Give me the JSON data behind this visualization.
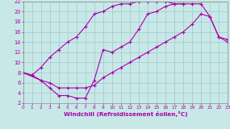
{
  "xlabel": "Windchill (Refroidissement éolien,°C)",
  "xlim": [
    0,
    23
  ],
  "ylim": [
    2,
    22
  ],
  "yticks": [
    2,
    4,
    6,
    8,
    10,
    12,
    14,
    16,
    18,
    20,
    22
  ],
  "xticks": [
    0,
    1,
    2,
    3,
    4,
    5,
    6,
    7,
    8,
    9,
    10,
    11,
    12,
    13,
    14,
    15,
    16,
    17,
    18,
    19,
    20,
    21,
    22,
    23
  ],
  "line_color": "#aa00aa",
  "bg_color": "#c8e8e8",
  "grid_color": "#a0c8c8",
  "curve1_x": [
    0,
    1,
    2,
    3,
    4,
    5,
    6,
    7,
    8,
    9,
    10,
    11,
    12,
    13,
    14,
    15,
    16,
    17,
    18
  ],
  "curve1_y": [
    8,
    7.5,
    9,
    11,
    12.5,
    14,
    15,
    17,
    19.5,
    20,
    21,
    21.5,
    21.5,
    22,
    22,
    22,
    22,
    21.5,
    21.5
  ],
  "curve2_x": [
    0,
    2,
    3,
    4,
    5,
    6,
    7,
    8,
    9,
    10,
    11,
    12,
    13,
    14,
    15,
    16,
    17,
    18,
    19,
    20,
    21,
    22,
    23
  ],
  "curve2_y": [
    8,
    6.5,
    6,
    5,
    5,
    5,
    5,
    5.5,
    7,
    8,
    9,
    10,
    11,
    12,
    13,
    14,
    15,
    16,
    17.5,
    19.5,
    19,
    15,
    14
  ],
  "curve3_x": [
    0,
    1,
    2,
    3,
    4,
    5,
    6,
    7,
    8,
    9,
    10,
    11,
    12,
    13,
    14,
    15,
    16,
    17,
    18,
    19,
    20,
    21,
    22,
    23
  ],
  "curve3_y": [
    8,
    7.5,
    6.5,
    5,
    3.5,
    3.5,
    3,
    3,
    6.5,
    12.5,
    12,
    13,
    14,
    16.5,
    19.5,
    20,
    21,
    21.5,
    21.5,
    21.5,
    21.5,
    19,
    15,
    14.5
  ]
}
